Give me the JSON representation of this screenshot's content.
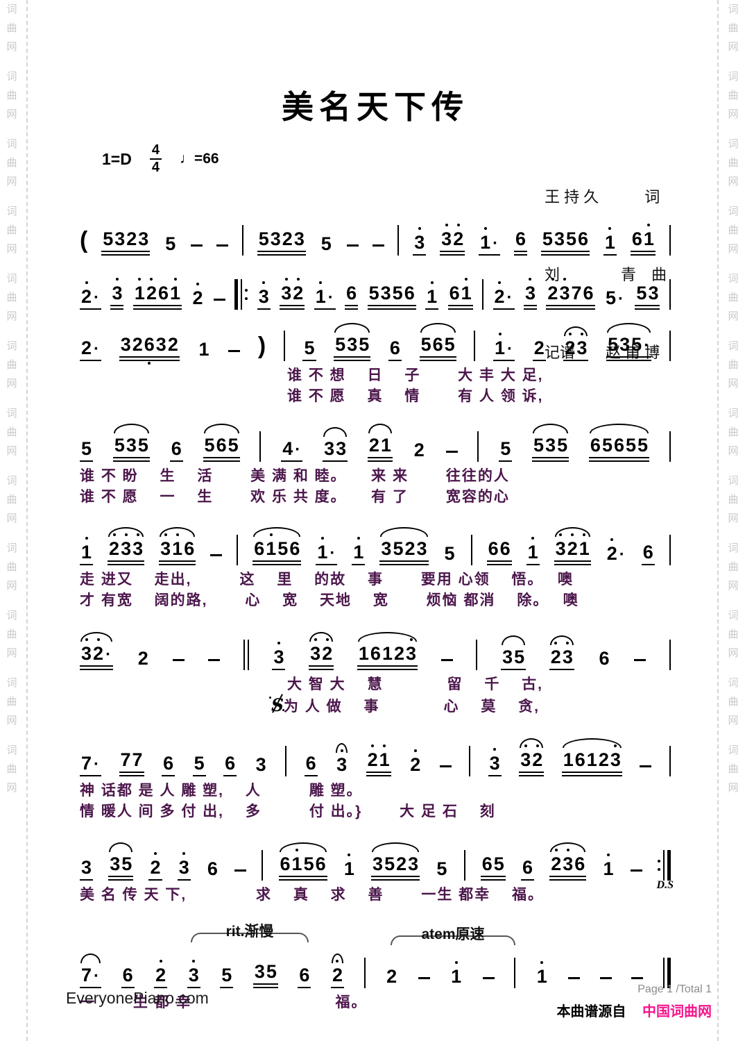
{
  "page": {
    "title": "美名天下传",
    "key_signature": "1=D",
    "time_signature_top": "4",
    "time_signature_bottom": "4",
    "tempo": "♩=66",
    "credits": [
      "王 持 久　　　词",
      "刘　　　　青　曲",
      "记谱　　赵 甫 博"
    ]
  },
  "watermark": {
    "text": "词曲网",
    "repeat": 12
  },
  "footer": {
    "site": "EveryonePiano.com",
    "page_info": "Page 1 /Total 1",
    "source_prefix": "本曲谱源自",
    "source_site": "中国词曲网"
  },
  "colors": {
    "lyrics": "#4b164b",
    "source_pink": "#f5148c",
    "watermark": "#c9c9c9"
  },
  "systems": [
    {
      "cls": "mt1",
      "notation": [
        {
          "t": "p",
          "v": "("
        },
        {
          "v": "5323",
          "u": 2
        },
        {
          "v": "5"
        },
        {
          "t": "d"
        },
        {
          "t": "d"
        },
        {
          "t": "b",
          "v": "|"
        },
        {
          "v": "5323",
          "u": 2
        },
        {
          "v": "5"
        },
        {
          "t": "d"
        },
        {
          "t": "d"
        },
        {
          "t": "b",
          "v": "|"
        },
        {
          "v": "3'",
          "u": 1
        },
        {
          "v": "3'2'",
          "u": 2
        },
        {
          "v": "1'·",
          "u": 1
        },
        {
          "v": "6",
          "u": 2
        },
        {
          "v": "5356",
          "u": 2
        },
        {
          "v": "1'",
          "u": 1
        },
        {
          "v": "61'",
          "u": 2
        },
        {
          "t": "b",
          "v": "|"
        }
      ],
      "lyrics": []
    },
    {
      "cls": "mt2",
      "notation": [
        {
          "v": "2'·",
          "u": 1
        },
        {
          "v": "3'",
          "u": 2
        },
        {
          "v": "1'2'61'",
          "u": 2
        },
        {
          "v": "2'"
        },
        {
          "t": "d"
        },
        {
          "t": "b",
          "v": "||:"
        },
        {
          "v": "3'",
          "u": 1
        },
        {
          "v": "3'2'",
          "u": 2
        },
        {
          "v": "1'·",
          "u": 1
        },
        {
          "v": "6",
          "u": 2
        },
        {
          "v": "5356",
          "u": 2
        },
        {
          "v": "1'",
          "u": 1
        },
        {
          "v": "61'",
          "u": 2
        },
        {
          "t": "b",
          "v": "|"
        },
        {
          "v": "2'·",
          "u": 1
        },
        {
          "v": "3'",
          "u": 2
        },
        {
          "v": "2'3'76",
          "u": 2
        },
        {
          "v": "5·"
        },
        {
          "v": "53",
          "u": 2
        },
        {
          "t": "b",
          "v": "|"
        }
      ],
      "lyrics": []
    },
    {
      "cls": "mt3",
      "notation": [
        {
          "v": "2·",
          "u": 1
        },
        {
          "v": "326,32",
          "u": 2
        },
        {
          "v": "1"
        },
        {
          "t": "d"
        },
        {
          "t": "p",
          "v": ")"
        },
        {
          "t": "b",
          "v": "|"
        },
        {
          "v": "5",
          "u": 1
        },
        {
          "v": "535",
          "u": 2,
          "tie": true
        },
        {
          "v": "6",
          "u": 1
        },
        {
          "v": "565",
          "u": 2,
          "tie": true
        },
        {
          "t": "b",
          "v": "|"
        },
        {
          "v": "1'·",
          "u": 1
        },
        {
          "v": "2",
          "u": 1
        },
        {
          "v": "2'3'",
          "u": 1,
          "tie": true
        },
        {
          "v": "535·",
          "u": 2,
          "tie": true
        },
        {
          "t": "b",
          "v": "|"
        }
      ],
      "lyrics": [
        {
          "text": "　　　　　　　　　　　　　谁 不 想　 日　 子　　 大 丰 大 足,"
        },
        {
          "text": "　　　　　　　　　　　　　谁 不 愿　 真　 情　　 有 人 领 诉,"
        }
      ]
    },
    {
      "cls": "mt4",
      "notation": [
        {
          "v": "5",
          "u": 1
        },
        {
          "v": "535",
          "u": 2,
          "tie": true
        },
        {
          "v": "6",
          "u": 1
        },
        {
          "v": "565",
          "u": 2,
          "tie": true
        },
        {
          "t": "b",
          "v": "|"
        },
        {
          "v": "4·",
          "u": 1
        },
        {
          "v": "33",
          "u": 1,
          "tie": true
        },
        {
          "v": "21",
          "u": 2,
          "tie": true
        },
        {
          "v": "2"
        },
        {
          "t": "d"
        },
        {
          "t": "b",
          "v": "|"
        },
        {
          "v": "5",
          "u": 1
        },
        {
          "v": "535",
          "u": 2,
          "tie": true
        },
        {
          "v": "65655",
          "u": 2,
          "tie": true
        },
        {
          "t": "b",
          "v": "|"
        }
      ],
      "lyrics": [
        {
          "text": "谁 不 盼　 生　 活　　 美 满 和 睦。　　来 来　　 往往的人"
        },
        {
          "text": "谁 不 愿　 一　 生　　 欢 乐 共 度。　　有 了　　 宽容的心"
        }
      ]
    },
    {
      "cls": "mt5",
      "notation": [
        {
          "v": "1'",
          "u": 1
        },
        {
          "v": "2'3'3'",
          "u": 2,
          "tie": true
        },
        {
          "v": "3'1'6",
          "u": 2,
          "tie": true
        },
        {
          "t": "d"
        },
        {
          "t": "b",
          "v": "|"
        },
        {
          "v": "61'56",
          "u": 2,
          "tie": true
        },
        {
          "v": "1'·",
          "u": 1
        },
        {
          "v": "1'",
          "u": 1
        },
        {
          "v": "3523",
          "u": 2,
          "tie": true
        },
        {
          "v": "5"
        },
        {
          "t": "b",
          "v": "|"
        },
        {
          "v": "66",
          "u": 2
        },
        {
          "v": "1'",
          "u": 1
        },
        {
          "v": "3'2'1'",
          "u": 2,
          "tie": true
        },
        {
          "v": "2'·"
        },
        {
          "v": "6",
          "u": 1
        },
        {
          "t": "b",
          "v": "|"
        }
      ],
      "lyrics": [
        {
          "text": "走 进又　 走出,　　　这　 里　 的故　 事　　 要用 心领　 悟。　 噢"
        },
        {
          "text": "才 有宽　 阔的路,　　 心　 宽　 天地　 宽　　 烦恼 都消　 除。　 噢"
        }
      ]
    },
    {
      "cls": "mt6",
      "notation": [
        {
          "v": "3'2'·",
          "u": 2,
          "tie": true
        },
        {
          "v": "2"
        },
        {
          "t": "d"
        },
        {
          "t": "d"
        },
        {
          "t": "b",
          "v": "||"
        },
        {
          "v": "3'",
          "u": 1
        },
        {
          "v": "3'2'",
          "u": 2,
          "tie": true
        },
        {
          "v": "16123'",
          "u": 2,
          "tie": true
        },
        {
          "t": "d"
        },
        {
          "t": "b",
          "v": "|"
        },
        {
          "v": "35",
          "u": 1,
          "tie": true
        },
        {
          "v": "2'3'",
          "u": 1,
          "tie": true
        },
        {
          "v": "6"
        },
        {
          "t": "d"
        },
        {
          "t": "b",
          "v": "|"
        }
      ],
      "lyrics": [
        {
          "text": "　　　　　　　　　　　　　大 智 大　 慧　　　　留　 千　 古,"
        },
        {
          "text": "　　　　　　　　　　　　§为 人 做　 事　　　　心　 莫　 贪,"
        }
      ]
    },
    {
      "cls": "mt7",
      "notation": [
        {
          "v": "7·",
          "u": 1
        },
        {
          "v": "77",
          "u": 2
        },
        {
          "v": "6",
          "u": 1
        },
        {
          "v": "5",
          "u": 1
        },
        {
          "v": "6",
          "u": 1
        },
        {
          "v": "3"
        },
        {
          "t": "b",
          "v": "|"
        },
        {
          "v": "6",
          "u": 1
        },
        {
          "v": "3'",
          "tie": true
        },
        {
          "v": "2'1'",
          "u": 2
        },
        {
          "v": "2'"
        },
        {
          "t": "d"
        },
        {
          "t": "b",
          "v": "|"
        },
        {
          "v": "3'",
          "u": 1
        },
        {
          "v": "3'2'",
          "u": 2,
          "tie": true
        },
        {
          "v": "16123'",
          "u": 2,
          "tie": true
        },
        {
          "t": "d"
        },
        {
          "t": "b",
          "v": "|"
        }
      ],
      "lyrics": [
        {
          "text": "神 话都 是 人 雕 塑,　 人　　　雕 塑。"
        },
        {
          "text": "情 暖人 间 多 付 出,　 多　　　付 出。}　　 大 足 石　 刻"
        }
      ]
    },
    {
      "cls": "mt8",
      "mark": "D.S",
      "notation": [
        {
          "v": "3",
          "u": 1
        },
        {
          "v": "35",
          "u": 2,
          "tie": true
        },
        {
          "v": "2'",
          "u": 1
        },
        {
          "v": "3'",
          "u": 1
        },
        {
          "v": "6"
        },
        {
          "t": "d"
        },
        {
          "t": "b",
          "v": "|"
        },
        {
          "v": "61'56",
          "u": 2,
          "tie": true
        },
        {
          "v": "1'"
        },
        {
          "v": "3523",
          "u": 2,
          "tie": true
        },
        {
          "v": "5"
        },
        {
          "t": "b",
          "v": "|"
        },
        {
          "v": "65",
          "u": 2
        },
        {
          "v": "6",
          "u": 1
        },
        {
          "v": "2'3'6",
          "u": 2,
          "tie": true
        },
        {
          "v": "1'"
        },
        {
          "t": "d"
        },
        {
          "t": "b",
          "v": ":||"
        }
      ],
      "lyrics": [
        {
          "text": "美 名 传 天 下,　　　　 求　 真　 求　 善　　 一生 都幸　 福。"
        }
      ]
    },
    {
      "cls": "mt9",
      "annotations": [
        {
          "id": "rit",
          "text": "rit.渐慢"
        },
        {
          "id": "atem",
          "text": "atem原速"
        }
      ],
      "notation": [
        {
          "v": "7·",
          "u": 1,
          "tie": true
        },
        {
          "v": "6",
          "u": 1
        },
        {
          "v": "2'",
          "u": 1
        },
        {
          "v": "3'",
          "u": 1
        },
        {
          "v": "5",
          "u": 1
        },
        {
          "v": "35",
          "u": 2
        },
        {
          "v": "6",
          "u": 1
        },
        {
          "v": "2'",
          "u": 1,
          "tie": true
        },
        {
          "t": "b",
          "v": "|"
        },
        {
          "v": "2"
        },
        {
          "t": "d"
        },
        {
          "v": "1'"
        },
        {
          "t": "d"
        },
        {
          "t": "b",
          "v": "|"
        },
        {
          "v": "1'"
        },
        {
          "t": "d"
        },
        {
          "t": "d"
        },
        {
          "t": "d"
        },
        {
          "t": "b",
          "v": "end"
        }
      ],
      "lyrics": [
        {
          "text": "一　　 生 都 幸　　　　　　　　　福。"
        }
      ]
    }
  ]
}
